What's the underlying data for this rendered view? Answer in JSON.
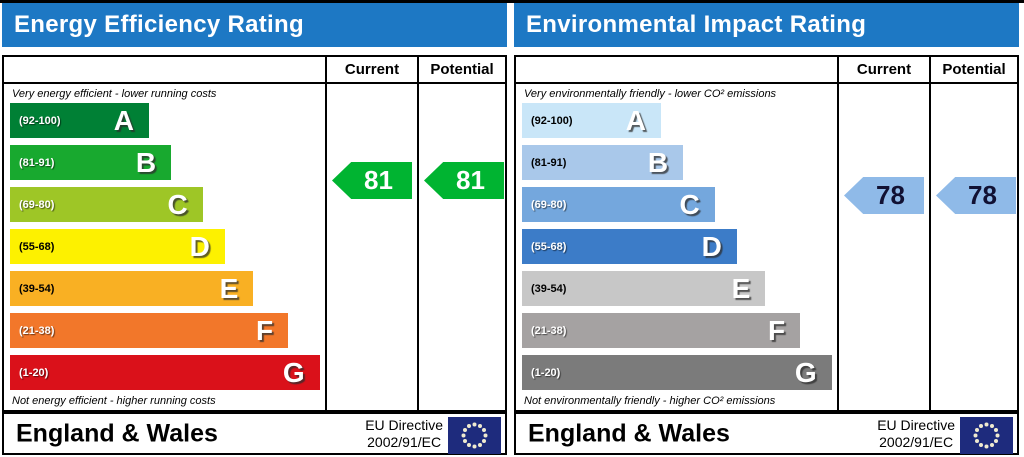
{
  "theme": {
    "header_blue": "#1d78c4",
    "eu_flag_blue": "#1e2b7d",
    "eu_flag_stars": "#f0ead0"
  },
  "panels": [
    {
      "title": "Energy Efficiency Rating",
      "columns": {
        "current": "Current",
        "potential": "Potential"
      },
      "top_note": "Very energy efficient - lower running costs",
      "bottom_note": "Not energy efficient - higher running costs",
      "bands": [
        {
          "range": "(92-100)",
          "letter": "A",
          "color": "#008035",
          "width_pct": 44,
          "text": "#ffffff"
        },
        {
          "range": "(81-91)",
          "letter": "B",
          "color": "#18a92f",
          "width_pct": 51,
          "text": "#ffffff"
        },
        {
          "range": "(69-80)",
          "letter": "C",
          "color": "#9ec626",
          "width_pct": 61,
          "text": "#ffffff"
        },
        {
          "range": "(55-68)",
          "letter": "D",
          "color": "#fdf100",
          "width_pct": 68,
          "text": "#000000"
        },
        {
          "range": "(39-54)",
          "letter": "E",
          "color": "#f9b023",
          "width_pct": 77,
          "text": "#000000"
        },
        {
          "range": "(21-38)",
          "letter": "F",
          "color": "#f2772a",
          "width_pct": 88,
          "text": "#ffffff"
        },
        {
          "range": "(1-20)",
          "letter": "G",
          "color": "#da111a",
          "width_pct": 98,
          "text": "#ffffff"
        }
      ],
      "current": {
        "value": "81",
        "arrow_color": "#00b431",
        "value_color": "#ffffff"
      },
      "potential": {
        "value": "81",
        "arrow_color": "#00b431",
        "value_color": "#ffffff"
      },
      "footer": {
        "region": "England & Wales",
        "directive_line1": "EU Directive",
        "directive_line2": "2002/91/EC"
      }
    },
    {
      "title": "Environmental Impact Rating",
      "columns": {
        "current": "Current",
        "potential": "Potential"
      },
      "top_note": "Very environmentally friendly - lower CO² emissions",
      "bottom_note": "Not environmentally friendly - higher CO² emissions",
      "bands": [
        {
          "range": "(92-100)",
          "letter": "A",
          "color": "#c9e6f8",
          "width_pct": 44,
          "text": "#000000"
        },
        {
          "range": "(81-91)",
          "letter": "B",
          "color": "#a9c8ea",
          "width_pct": 51,
          "text": "#000000"
        },
        {
          "range": "(69-80)",
          "letter": "C",
          "color": "#74a7dd",
          "width_pct": 61,
          "text": "#ffffff"
        },
        {
          "range": "(55-68)",
          "letter": "D",
          "color": "#3c7cc8",
          "width_pct": 68,
          "text": "#ffffff"
        },
        {
          "range": "(39-54)",
          "letter": "E",
          "color": "#c7c7c7",
          "width_pct": 77,
          "text": "#000000"
        },
        {
          "range": "(21-38)",
          "letter": "F",
          "color": "#a5a2a2",
          "width_pct": 88,
          "text": "#ffffff"
        },
        {
          "range": "(1-20)",
          "letter": "G",
          "color": "#7b7b7b",
          "width_pct": 98,
          "text": "#ffffff"
        }
      ],
      "current": {
        "value": "78",
        "arrow_color": "#8fbae8",
        "value_color": "#111133"
      },
      "potential": {
        "value": "78",
        "arrow_color": "#8fbae8",
        "value_color": "#111133"
      },
      "footer": {
        "region": "England & Wales",
        "directive_line1": "EU Directive",
        "directive_line2": "2002/91/EC"
      }
    }
  ],
  "chart_data": [
    {
      "type": "bar",
      "title": "Energy Efficiency Rating",
      "categories": [
        "A (92-100)",
        "B (81-91)",
        "C (69-80)",
        "D (55-68)",
        "E (39-54)",
        "F (21-38)",
        "G (1-20)"
      ],
      "values": [
        44,
        51,
        61,
        68,
        77,
        88,
        98
      ],
      "xlabel": "",
      "ylabel": "",
      "current": 81,
      "potential": 81
    },
    {
      "type": "bar",
      "title": "Environmental Impact Rating",
      "categories": [
        "A (92-100)",
        "B (81-91)",
        "C (69-80)",
        "D (55-68)",
        "E (39-54)",
        "F (21-38)",
        "G (1-20)"
      ],
      "values": [
        44,
        51,
        61,
        68,
        77,
        88,
        98
      ],
      "xlabel": "",
      "ylabel": "",
      "current": 78,
      "potential": 78
    }
  ]
}
